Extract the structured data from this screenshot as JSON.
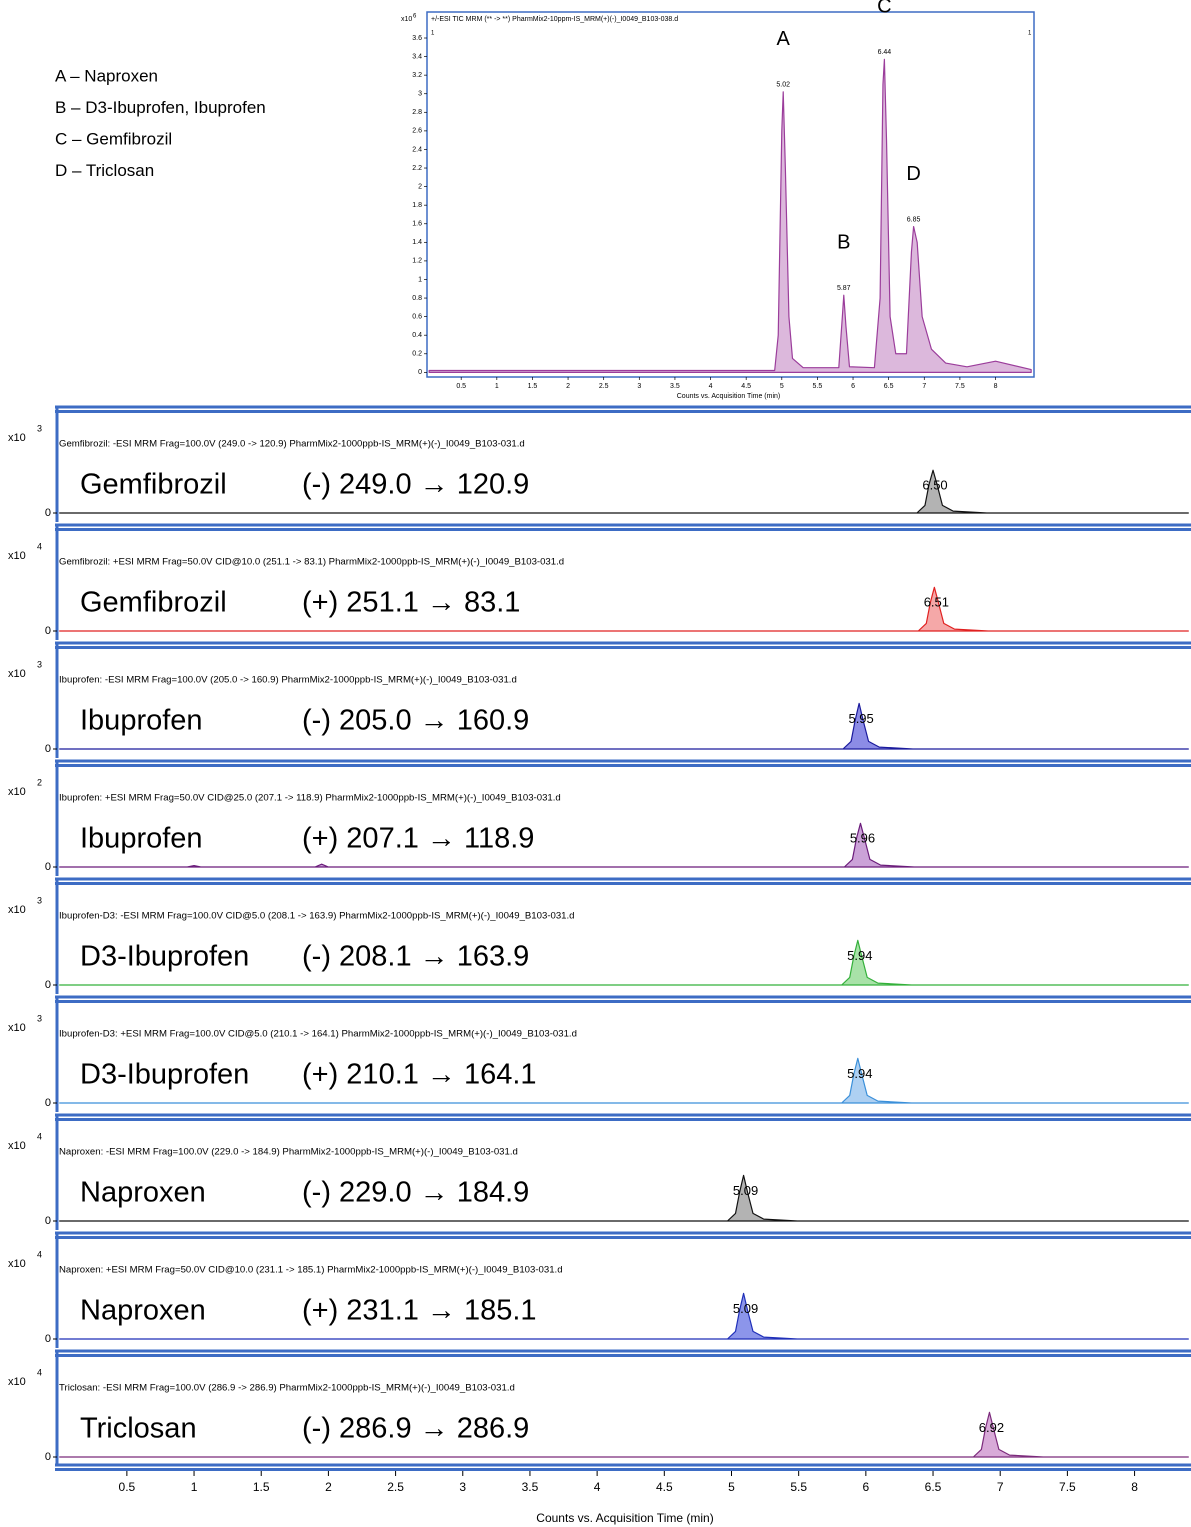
{
  "notes": [
    "A – Naproxen",
    "B – D3-Ibuprofen, Ibuprofen",
    "C – Gemfibrozil",
    "D – Triclosan"
  ],
  "chart_data": [
    {
      "type": "area",
      "title": "+/-ESI TIC MRM (** -> **) PharmMix2-10ppm-IS_MRM(+)(-)_I0049_B103-038.d",
      "multiplier": "x10",
      "exponent": "6",
      "cursor_labels": [
        "1",
        "1"
      ],
      "x_label": "Counts vs. Acquisition Time (min)",
      "xlim": [
        0.02,
        8.54
      ],
      "ylim": [
        -0.05,
        3.88
      ],
      "xticks": [
        0.5,
        1,
        1.5,
        2,
        2.5,
        3,
        3.5,
        4,
        4.5,
        5,
        5.5,
        6,
        6.5,
        7,
        7.5,
        8
      ],
      "yticks": [
        0,
        0.2,
        0.4,
        0.6,
        0.8,
        1,
        1.2,
        1.4,
        1.6,
        1.8,
        2,
        2.2,
        2.4,
        2.6,
        2.8,
        3,
        3.2,
        3.4,
        3.6
      ],
      "x": [
        0.05,
        4.9,
        4.95,
        5.0,
        5.02,
        5.05,
        5.1,
        5.15,
        5.3,
        5.8,
        5.85,
        5.87,
        5.9,
        5.95,
        6.3,
        6.38,
        6.42,
        6.44,
        6.47,
        6.52,
        6.6,
        6.75,
        6.82,
        6.85,
        6.9,
        6.97,
        7.1,
        7.3,
        7.6,
        8.0,
        8.5
      ],
      "series": [
        {
          "color": "#9b3d9b",
          "fill": "#dcb8dc",
          "values": [
            0.02,
            0.02,
            0.4,
            2.6,
            3.02,
            2.2,
            0.6,
            0.15,
            0.05,
            0.05,
            0.6,
            0.83,
            0.5,
            0.06,
            0.05,
            0.8,
            3.1,
            3.37,
            2.5,
            0.6,
            0.2,
            0.2,
            1.3,
            1.57,
            1.4,
            0.6,
            0.25,
            0.1,
            0.06,
            0.12,
            0.03
          ]
        }
      ],
      "peak_labels": [
        5.02,
        5.87,
        6.44,
        6.85
      ],
      "peak_letters": [
        "A",
        "B",
        "C",
        "D"
      ]
    },
    {
      "type": "area",
      "title": "Gemfibrozil: -ESI MRM Frag=100.0V (249.0 -> 120.9) PharmMix2-1000ppb-IS_MRM(+)(-)_I0049_B103-031.d",
      "compound": "Gemfibrozil",
      "transition": "(-) 249.0 → 120.9",
      "multiplier": "x10",
      "exponent": "3",
      "xlim": [
        -0.02,
        8.42
      ],
      "ylim": [
        0,
        1
      ],
      "yticks": [
        0
      ],
      "x": [
        0,
        6.38,
        6.44,
        6.47,
        6.5,
        6.53,
        6.57,
        6.65,
        6.9,
        8.4
      ],
      "series": [
        {
          "color": "#111111",
          "fill": "#b3b3b3",
          "values": [
            0,
            0,
            0.08,
            0.3,
            0.45,
            0.3,
            0.08,
            0.02,
            0,
            0
          ]
        }
      ],
      "peak_labels": [
        {
          "value": 6.5,
          "label": "6.50"
        }
      ]
    },
    {
      "type": "area",
      "title": "Gemfibrozil: +ESI MRM Frag=50.0V CID@10.0 (251.1 -> 83.1) PharmMix2-1000ppb-IS_MRM(+)(-)_I0049_B103-031.d",
      "compound": "Gemfibrozil",
      "transition": "(+) 251.1 → 83.1",
      "multiplier": "x10",
      "exponent": "4",
      "xlim": [
        -0.02,
        8.42
      ],
      "ylim": [
        0,
        1
      ],
      "yticks": [
        0
      ],
      "x": [
        0,
        6.39,
        6.45,
        6.48,
        6.51,
        6.54,
        6.58,
        6.66,
        6.91,
        8.4
      ],
      "series": [
        {
          "color": "#e02020",
          "fill": "#f5a8a8",
          "values": [
            0,
            0,
            0.08,
            0.3,
            0.46,
            0.3,
            0.08,
            0.02,
            0,
            0
          ]
        }
      ],
      "peak_labels": [
        6.51
      ]
    },
    {
      "type": "area",
      "title": "Ibuprofen: -ESI MRM Frag=100.0V (205.0 -> 160.9) PharmMix2-1000ppb-IS_MRM(+)(-)_I0049_B103-031.d",
      "compound": "Ibuprofen",
      "transition": "(-) 205.0 → 160.9",
      "multiplier": "x10",
      "exponent": "3",
      "xlim": [
        -0.02,
        8.42
      ],
      "ylim": [
        0,
        1
      ],
      "yticks": [
        0
      ],
      "x": [
        0,
        5.83,
        5.89,
        5.92,
        5.95,
        5.98,
        6.02,
        6.1,
        6.35,
        8.4
      ],
      "series": [
        {
          "color": "#1a1a9c",
          "fill": "#8c8ce6",
          "values": [
            0,
            0,
            0.08,
            0.3,
            0.48,
            0.3,
            0.08,
            0.02,
            0,
            0
          ]
        }
      ],
      "peak_labels": [
        5.95
      ]
    },
    {
      "type": "area",
      "title": "Ibuprofen: +ESI MRM Frag=50.0V CID@25.0 (207.1 -> 118.9) PharmMix2-1000ppb-IS_MRM(+)(-)_I0049_B103-031.d",
      "compound": "Ibuprofen",
      "transition": "(+) 207.1 → 118.9",
      "multiplier": "x10",
      "exponent": "2",
      "xlim": [
        -0.02,
        8.42
      ],
      "ylim": [
        0,
        1
      ],
      "yticks": [
        0
      ],
      "x": [
        0,
        0.95,
        1.0,
        1.05,
        1.9,
        1.95,
        2.0,
        5.84,
        5.9,
        5.93,
        5.96,
        5.99,
        6.03,
        6.11,
        6.36,
        8.4
      ],
      "series": [
        {
          "color": "#6a1b7a",
          "fill": "#cba2d8",
          "values": [
            0,
            0,
            0.015,
            0,
            0,
            0.03,
            0,
            0,
            0.08,
            0.3,
            0.46,
            0.3,
            0.08,
            0.02,
            0,
            0
          ]
        }
      ],
      "peak_labels": [
        5.96
      ]
    },
    {
      "type": "area",
      "title": "Ibuprofen-D3: -ESI MRM Frag=100.0V CID@5.0 (208.1 -> 163.9) PharmMix2-1000ppb-IS_MRM(+)(-)_I0049_B103-031.d",
      "compound": "D3-Ibuprofen",
      "transition": "(-) 208.1 → 163.9",
      "multiplier": "x10",
      "exponent": "3",
      "xlim": [
        -0.02,
        8.42
      ],
      "ylim": [
        0,
        1
      ],
      "yticks": [
        0
      ],
      "x": [
        0,
        5.82,
        5.88,
        5.91,
        5.94,
        5.97,
        6.01,
        6.09,
        6.34,
        8.4
      ],
      "series": [
        {
          "color": "#33b03a",
          "fill": "#a8e2a8",
          "values": [
            0,
            0,
            0.08,
            0.3,
            0.47,
            0.3,
            0.08,
            0.02,
            0,
            0
          ]
        }
      ],
      "peak_labels": [
        5.94
      ]
    },
    {
      "type": "area",
      "title": "Ibuprofen-D3: +ESI MRM Frag=100.0V CID@5.0 (210.1 -> 164.1) PharmMix2-1000ppb-IS_MRM(+)(-)_I0049_B103-031.d",
      "compound": "D3-Ibuprofen",
      "transition": "(+) 210.1 → 164.1",
      "multiplier": "x10",
      "exponent": "3",
      "xlim": [
        -0.02,
        8.42
      ],
      "ylim": [
        0,
        1
      ],
      "yticks": [
        0
      ],
      "x": [
        0,
        5.82,
        5.88,
        5.91,
        5.94,
        5.97,
        6.01,
        6.09,
        6.34,
        8.4
      ],
      "series": [
        {
          "color": "#3a8fd9",
          "fill": "#aed0f2",
          "values": [
            0,
            0,
            0.08,
            0.3,
            0.47,
            0.3,
            0.08,
            0.02,
            0,
            0
          ]
        }
      ],
      "peak_labels": [
        5.94
      ]
    },
    {
      "type": "area",
      "title": "Naproxen: -ESI MRM Frag=100.0V (229.0 -> 184.9) PharmMix2-1000ppb-IS_MRM(+)(-)_I0049_B103-031.d",
      "compound": "Naproxen",
      "transition": "(-) 229.0 → 184.9",
      "multiplier": "x10",
      "exponent": "4",
      "xlim": [
        -0.02,
        8.42
      ],
      "ylim": [
        0,
        1
      ],
      "yticks": [
        0
      ],
      "x": [
        0,
        4.97,
        5.03,
        5.06,
        5.09,
        5.12,
        5.16,
        5.24,
        5.49,
        8.4
      ],
      "series": [
        {
          "color": "#111111",
          "fill": "#b3b3b3",
          "values": [
            0,
            0,
            0.08,
            0.3,
            0.48,
            0.3,
            0.08,
            0.02,
            0,
            0
          ]
        }
      ],
      "peak_labels": [
        5.09
      ]
    },
    {
      "type": "area",
      "title": "Naproxen: +ESI MRM Frag=50.0V CID@10.0 (231.1 -> 185.1) PharmMix2-1000ppb-IS_MRM(+)(-)_I0049_B103-031.d",
      "compound": "Naproxen",
      "transition": "(+) 231.1 → 185.1",
      "multiplier": "x10",
      "exponent": "4",
      "xlim": [
        -0.02,
        8.42
      ],
      "ylim": [
        0,
        1
      ],
      "yticks": [
        0
      ],
      "x": [
        0,
        4.97,
        5.03,
        5.06,
        5.09,
        5.12,
        5.16,
        5.24,
        5.49,
        8.4
      ],
      "series": [
        {
          "color": "#1f2fb8",
          "fill": "#8c95ea",
          "values": [
            0,
            0,
            0.08,
            0.3,
            0.48,
            0.3,
            0.08,
            0.02,
            0,
            0
          ]
        }
      ],
      "peak_labels": [
        5.09
      ]
    },
    {
      "type": "area",
      "title": "Triclosan: -ESI MRM Frag=100.0V (286.9 -> 286.9) PharmMix2-1000ppb-IS_MRM(+)(-)_I0049_B103-031.d",
      "compound": "Triclosan",
      "transition": "(-) 286.9 → 286.9",
      "multiplier": "x10",
      "exponent": "4",
      "xlim": [
        -0.02,
        8.42
      ],
      "ylim": [
        0,
        1
      ],
      "yticks": [
        0
      ],
      "xticks": [
        0.5,
        1,
        1.5,
        2,
        2.5,
        3,
        3.5,
        4,
        4.5,
        5,
        5.5,
        6,
        6.5,
        7,
        7.5,
        8
      ],
      "x_label": "Counts vs. Acquisition Time (min)",
      "x": [
        0,
        6.8,
        6.86,
        6.89,
        6.92,
        6.95,
        6.99,
        7.07,
        7.32,
        8.4
      ],
      "series": [
        {
          "color": "#7b2a7b",
          "fill": "#d8aad8",
          "values": [
            0,
            0,
            0.08,
            0.3,
            0.47,
            0.3,
            0.08,
            0.02,
            0,
            0
          ]
        }
      ],
      "peak_labels": [
        6.92
      ]
    }
  ]
}
